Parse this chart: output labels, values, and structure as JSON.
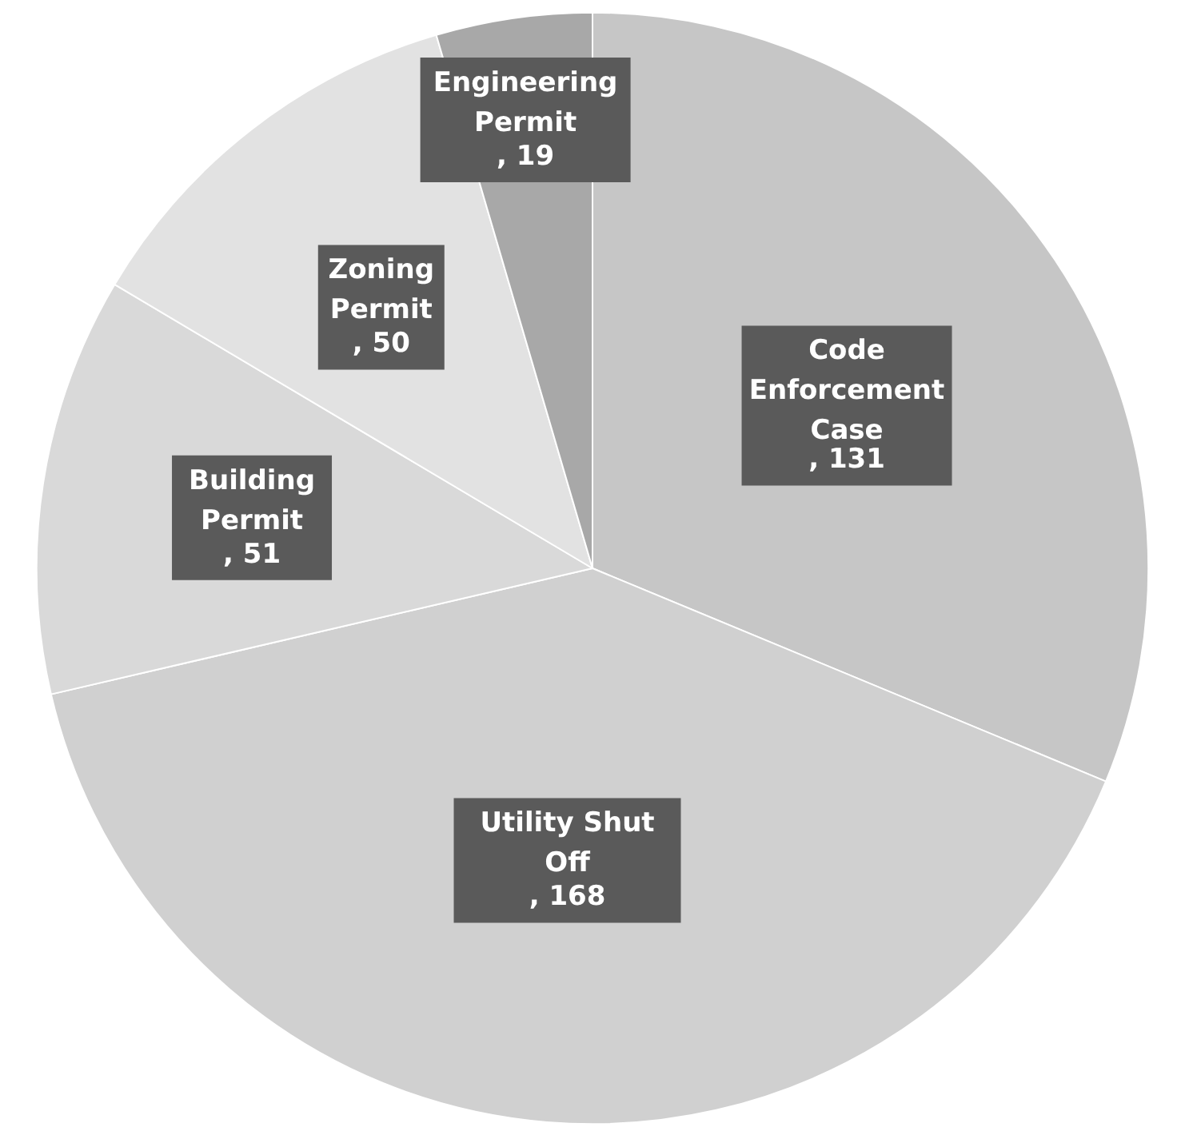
{
  "chart_data": {
    "type": "pie",
    "categories": [
      "Code Enforcement Case",
      "Utility Shut Off",
      "Building Permit",
      "Zoning Permit",
      "Engineering Permit"
    ],
    "values": [
      131,
      168,
      51,
      50,
      19
    ],
    "colors": [
      "#c6c6c6",
      "#d0d0d0",
      "#d9d9d9",
      "#e2e2e2",
      "#a8a8a8"
    ],
    "value_labels": [
      ", 131",
      ", 168",
      ", 51",
      ", 50",
      ", 19"
    ]
  }
}
